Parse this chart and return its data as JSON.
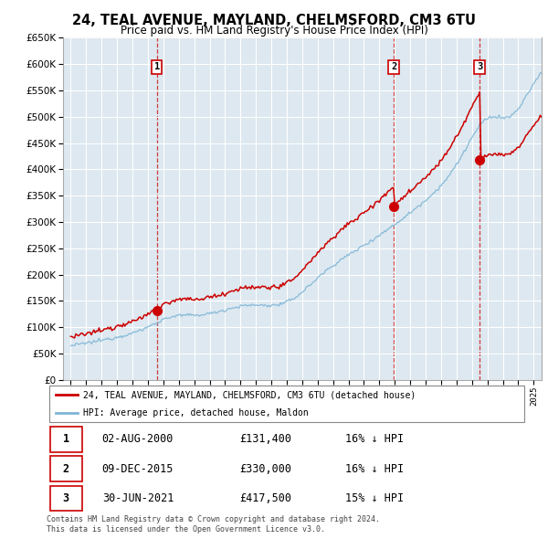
{
  "title": "24, TEAL AVENUE, MAYLAND, CHELMSFORD, CM3 6TU",
  "subtitle": "Price paid vs. HM Land Registry's House Price Index (HPI)",
  "legend_line1": "24, TEAL AVENUE, MAYLAND, CHELMSFORD, CM3 6TU (detached house)",
  "legend_line2": "HPI: Average price, detached house, Maldon",
  "footer1": "Contains HM Land Registry data © Crown copyright and database right 2024.",
  "footer2": "This data is licensed under the Open Government Licence v3.0.",
  "transactions": [
    {
      "num": 1,
      "date": "02-AUG-2000",
      "price": "£131,400",
      "hpi": "16% ↓ HPI",
      "x_year": 2000.58,
      "y_val": 131400
    },
    {
      "num": 2,
      "date": "09-DEC-2015",
      "price": "£330,000",
      "hpi": "16% ↓ HPI",
      "x_year": 2015.93,
      "y_val": 330000
    },
    {
      "num": 3,
      "date": "30-JUN-2021",
      "price": "£417,500",
      "hpi": "15% ↓ HPI",
      "x_year": 2021.5,
      "y_val": 417500
    }
  ],
  "line_color_red": "#cc0000",
  "line_color_blue": "#7eb5d6",
  "grid_color": "#cccccc",
  "chart_bg": "#dde8f0",
  "background_color": "#ffffff",
  "ylim": [
    0,
    650000
  ],
  "xlim_start": 1994.5,
  "xlim_end": 2025.5
}
